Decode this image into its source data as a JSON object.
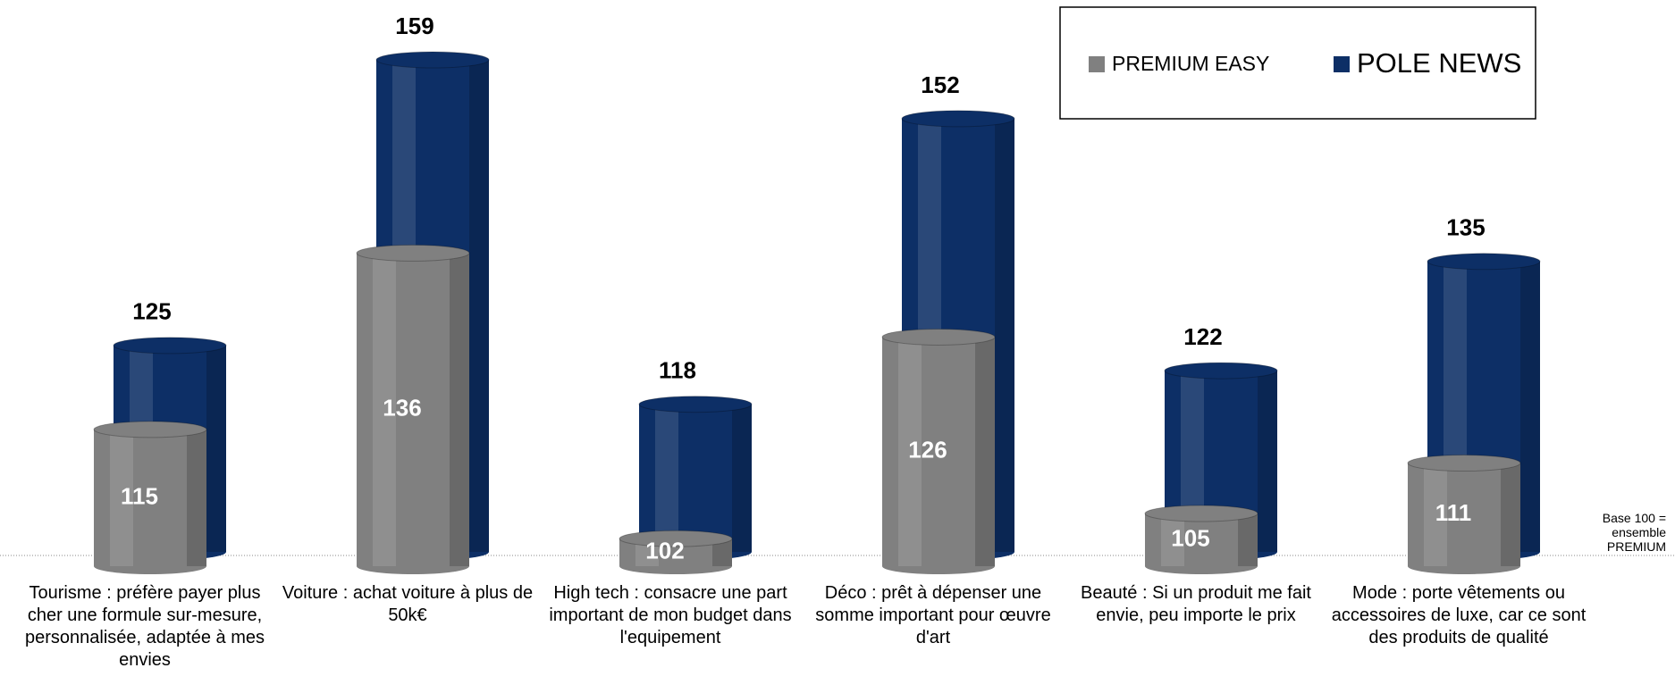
{
  "chart_data": {
    "type": "bar",
    "categories": [
      "Tourisme : préfère payer plus cher une formule sur-mesure, personnalisée, adaptée à mes envies",
      "Voiture : achat voiture à plus de 50k€",
      "High tech : consacre une part important de mon budget dans l'equipement",
      "Déco : prêt à dépenser une somme important pour œuvre d'art",
      "Beauté : Si un produit me fait envie, peu importe le prix",
      "Mode : porte vêtements ou accessoires de luxe, car ce sont des produits de qualité"
    ],
    "series": [
      {
        "name": "PREMIUM EASY",
        "color": "#808080",
        "values": [
          115,
          136,
          102,
          126,
          105,
          111
        ]
      },
      {
        "name": "POLE NEWS",
        "color": "#0d2f66",
        "values": [
          125,
          159,
          118,
          152,
          122,
          135
        ]
      }
    ],
    "ylim": [
      100,
      164
    ],
    "annotation": "Base 100 = ensemble PREMIUM",
    "legend": "upper right"
  }
}
